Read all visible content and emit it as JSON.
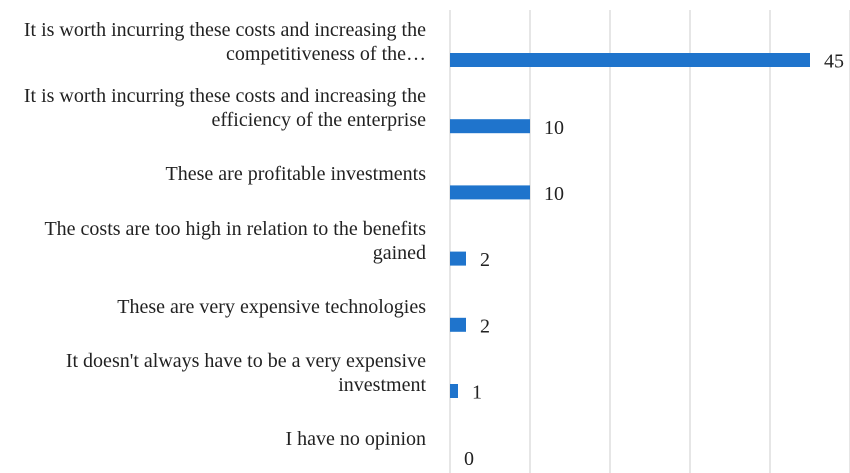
{
  "chart_data": {
    "type": "bar",
    "orientation": "horizontal",
    "categories": [
      "It is worth incurring these costs and increasing the competitiveness of the…",
      "It is worth incurring these costs and increasing the efficiency of the enterprise",
      "These are profitable investments",
      "The costs are too high in relation to the benefits gained",
      "These are very expensive technologies",
      "It doesn't always have to be a very expensive investment",
      "I have no opinion"
    ],
    "values": [
      45,
      10,
      10,
      2,
      2,
      1,
      0
    ],
    "color": "#1f74cc",
    "xlim": [
      0,
      50
    ],
    "xticks": [
      0,
      10,
      20,
      30,
      40,
      50
    ],
    "grid": true
  }
}
